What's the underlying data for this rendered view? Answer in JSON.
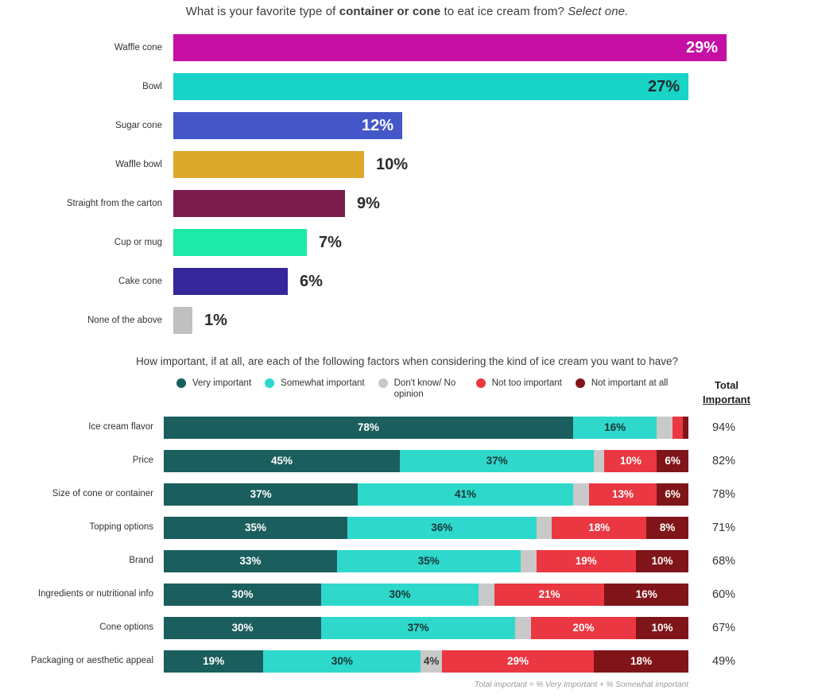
{
  "chart1": {
    "title": {
      "prefix": "What is your favorite type of ",
      "bold": "container or cone",
      "middle": " to eat ice cream from? ",
      "italic": "Select one."
    }
  },
  "chart2": {
    "title": "How important, if at all, are each of the following factors when considering the kind of ice cream you want to have?",
    "total_header_line1": "Total",
    "total_header_line2": "Important",
    "footnote": "Total important = % Very Important + % Somewhat important"
  },
  "chart_data": [
    {
      "type": "bar",
      "orientation": "horizontal",
      "title": "What is your favorite type of container or cone to eat ice cream from? Select one.",
      "unit": "%",
      "xlim": [
        0,
        29
      ],
      "grid": false,
      "categories": [
        "Waffle cone",
        "Bowl",
        "Sugar cone",
        "Waffle bowl",
        "Straight from the carton",
        "Cup or mug",
        "Cake cone",
        "None of the above"
      ],
      "values": [
        29,
        27,
        12,
        10,
        9,
        7,
        6,
        1
      ],
      "value_labels": [
        "29%",
        "27%",
        "12%",
        "10%",
        "9%",
        "7%",
        "6%",
        "1%"
      ],
      "bar_colors": [
        "#c50ea4",
        "#17d4c6",
        "#4456c8",
        "#dda92c",
        "#7d1d4d",
        "#1de9a8",
        "#36269b",
        "#c0c0c0"
      ],
      "label_placement": [
        "inside",
        "inside",
        "inside",
        "outside",
        "outside",
        "outside",
        "outside",
        "outside"
      ],
      "inside_label_colors": [
        "#ffffff",
        "#1f2a2a",
        "#ffffff",
        "",
        "",
        "",
        "",
        ""
      ]
    },
    {
      "type": "stacked-bar",
      "orientation": "horizontal",
      "title": "How important, if at all, are each of the following factors when considering the kind of ice cream you want to have?",
      "unit": "%",
      "xlim": [
        0,
        100
      ],
      "grid": false,
      "legend_position": "top",
      "legend": [
        "Very important",
        "Somewhat important",
        "Don't know/ No opinion",
        "Not too important",
        "Not important at all"
      ],
      "series_colors": [
        "#1b5e5e",
        "#2ed9cc",
        "#c9c9c9",
        "#ea3742",
        "#801519"
      ],
      "segment_label_colors": [
        "#ffffff",
        "#173434",
        "#3a3a3a",
        "#ffffff",
        "#ffffff"
      ],
      "total_column_header": "Total Important",
      "categories": [
        "Ice cream flavor",
        "Price",
        "Size of cone or container",
        "Topping options",
        "Brand",
        "Ingredients or nutritional info",
        "Cone options",
        "Packaging or aesthetic appeal"
      ],
      "rows": [
        {
          "label": "Ice cream flavor",
          "values": [
            78,
            16,
            3,
            2,
            1
          ],
          "segment_labels": [
            "78%",
            "16%",
            "",
            "",
            ""
          ],
          "total": "94%"
        },
        {
          "label": "Price",
          "values": [
            45,
            37,
            2,
            10,
            6
          ],
          "segment_labels": [
            "45%",
            "37%",
            "",
            "10%",
            "6%"
          ],
          "total": "82%"
        },
        {
          "label": "Size of cone or container",
          "values": [
            37,
            41,
            3,
            13,
            6
          ],
          "segment_labels": [
            "37%",
            "41%",
            "",
            "13%",
            "6%"
          ],
          "total": "78%"
        },
        {
          "label": "Topping options",
          "values": [
            35,
            36,
            3,
            18,
            8
          ],
          "segment_labels": [
            "35%",
            "36%",
            "",
            "18%",
            "8%"
          ],
          "total": "71%"
        },
        {
          "label": "Brand",
          "values": [
            33,
            35,
            3,
            19,
            10
          ],
          "segment_labels": [
            "33%",
            "35%",
            "",
            "19%",
            "10%"
          ],
          "total": "68%"
        },
        {
          "label": "Ingredients or nutritional info",
          "values": [
            30,
            30,
            3,
            21,
            16
          ],
          "segment_labels": [
            "30%",
            "30%",
            "",
            "21%",
            "16%"
          ],
          "total": "60%"
        },
        {
          "label": "Cone options",
          "values": [
            30,
            37,
            3,
            20,
            10
          ],
          "segment_labels": [
            "30%",
            "37%",
            "",
            "20%",
            "10%"
          ],
          "total": "67%"
        },
        {
          "label": "Packaging or aesthetic appeal",
          "values": [
            19,
            30,
            4,
            29,
            18
          ],
          "segment_labels": [
            "19%",
            "30%",
            "4%",
            "29%",
            "18%"
          ],
          "total": "49%"
        }
      ],
      "footnote": "Total important = % Very Important + % Somewhat important"
    }
  ]
}
